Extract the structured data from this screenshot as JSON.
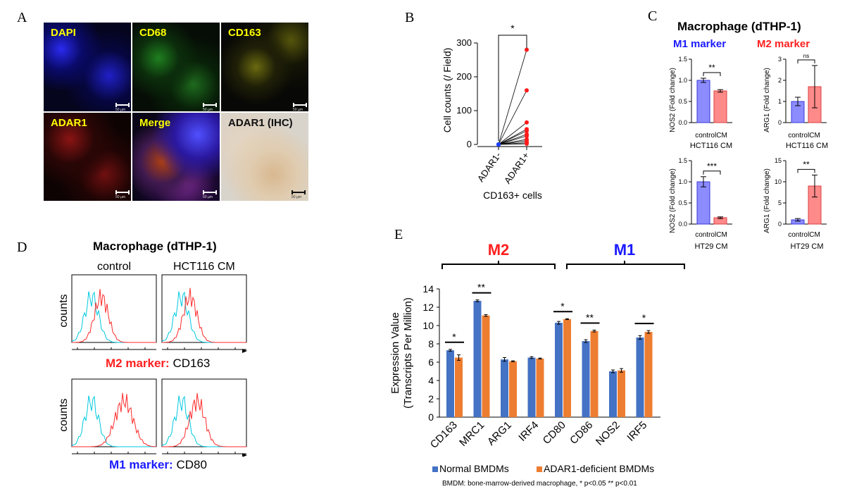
{
  "panel_letters": {
    "a": "A",
    "b": "B",
    "c": "C",
    "d": "D",
    "e": "E"
  },
  "panel_a": {
    "tiles": [
      {
        "label": "DAPI",
        "color": "#1a1ad9"
      },
      {
        "label": "CD68",
        "color": "#2bb02b"
      },
      {
        "label": "CD163",
        "color": "#b8b820"
      },
      {
        "label": "ADAR1",
        "color": "#c81e1e"
      },
      {
        "label": "Merge",
        "color": "#8a2f9a"
      },
      {
        "label": "ADAR1 (IHC)",
        "color": "#cdbda8"
      }
    ],
    "scale_text": "50 µm"
  },
  "panel_b": {
    "ylabel": "Cell counts (/ Field)",
    "xlabel": "CD163+ cells",
    "categories": [
      "ADAR1-",
      "ADAR1+"
    ],
    "yticks": [
      "0",
      "100",
      "200",
      "300"
    ],
    "sig": "*"
  },
  "panel_c": {
    "title": "Macrophage (dTHP-1)",
    "m1_label": "M1 marker",
    "m2_label": "M2 marker",
    "plots": [
      {
        "ylabel": "NOS2 (Fold change)",
        "xcats": "controlCM",
        "xlabel": "HCT116 CM",
        "sig": "**",
        "yticks": [
          "0.0",
          "0.5",
          "1.0",
          "1.5"
        ]
      },
      {
        "ylabel": "ARG1 (Fold change)",
        "xcats": "controlCM",
        "xlabel": "HCT116 CM",
        "sig": "ns",
        "yticks": [
          "0",
          "1",
          "2",
          "3"
        ]
      },
      {
        "ylabel": "NOS2 (Fold change)",
        "xcats": "controlCM",
        "xlabel": "HT29 CM",
        "sig": "***",
        "yticks": [
          "0.0",
          "0.5",
          "1.0",
          "1.5"
        ]
      },
      {
        "ylabel": "ARG1 (Fold change)",
        "xcats": "controlCM",
        "xlabel": "HT29 CM",
        "sig": "**",
        "yticks": [
          "0",
          "5",
          "10",
          "15"
        ]
      }
    ]
  },
  "panel_d": {
    "title": "Macrophage (dTHP-1)",
    "col1": "control",
    "col2": "HCT116 CM",
    "ylabel": "counts",
    "m2_marker": "M2 marker:",
    "m2_name": "CD163",
    "m1_marker": "M1 marker:",
    "m1_name": "CD80"
  },
  "panel_e": {
    "m2_label": "M2",
    "m1_label": "M1",
    "footnote": "BMDM: bone-marrow-derived macrophage, *  p<0.05  ** p<0.01"
  },
  "chart_data": [
    {
      "type": "scatter",
      "title": "",
      "xlabel": "CD163+ cells",
      "ylabel": "Cell counts (/ Field)",
      "categories": [
        "ADAR1-",
        "ADAR1+"
      ],
      "ylim": [
        0,
        300
      ],
      "series": [
        {
          "name": "ADAR1-",
          "values": [
            0,
            0,
            0,
            0,
            0,
            0,
            0,
            0,
            0,
            0,
            0
          ]
        },
        {
          "name": "ADAR1+",
          "values": [
            280,
            160,
            65,
            45,
            40,
            30,
            25,
            15,
            10,
            5,
            2
          ]
        }
      ]
    },
    {
      "type": "bar",
      "title": "",
      "xlabel": "HCT116 CM",
      "ylabel": "NOS2 (Fold change)",
      "categories": [
        "control",
        "CM"
      ],
      "values": [
        1.0,
        0.75
      ],
      "errors": [
        0.05,
        0.03
      ],
      "ylim": [
        0,
        1.5
      ]
    },
    {
      "type": "bar",
      "title": "",
      "xlabel": "HCT116 CM",
      "ylabel": "ARG1 (Fold change)",
      "categories": [
        "control",
        "CM"
      ],
      "values": [
        1.0,
        1.7
      ],
      "errors": [
        0.2,
        1.0
      ],
      "ylim": [
        0,
        3
      ]
    },
    {
      "type": "bar",
      "title": "",
      "xlabel": "HT29 CM",
      "ylabel": "NOS2 (Fold change)",
      "categories": [
        "control",
        "CM"
      ],
      "values": [
        1.0,
        0.15
      ],
      "errors": [
        0.12,
        0.02
      ],
      "ylim": [
        0,
        1.5
      ]
    },
    {
      "type": "bar",
      "title": "",
      "xlabel": "HT29 CM",
      "ylabel": "ARG1 (Fold change)",
      "categories": [
        "control",
        "CM"
      ],
      "values": [
        1.0,
        9.0
      ],
      "errors": [
        0.3,
        2.6
      ],
      "ylim": [
        0,
        15
      ]
    },
    {
      "type": "bar",
      "title": "",
      "xlabel": "",
      "ylabel": "Expression Value (Transcripts Per Million)",
      "categories": [
        "CD163",
        "MRC1",
        "ARG1",
        "IRF4",
        "CD80",
        "CD86",
        "NOS2",
        "IRF5"
      ],
      "ylim": [
        0,
        14
      ],
      "yticks": [
        "0",
        "2",
        "4",
        "6",
        "8",
        "10",
        "12",
        "14"
      ],
      "series": [
        {
          "name": "Normal BMDMs",
          "color": "#4472c4",
          "values": [
            7.3,
            12.7,
            6.3,
            6.5,
            10.3,
            8.3,
            5.0,
            8.7
          ],
          "errors": [
            0.1,
            0.1,
            0.2,
            0.1,
            0.15,
            0.15,
            0.15,
            0.2
          ]
        },
        {
          "name": "ADAR1-deficient BMDMs",
          "color": "#ed7d31",
          "values": [
            6.5,
            11.1,
            6.1,
            6.4,
            10.7,
            9.4,
            5.1,
            9.3
          ],
          "errors": [
            0.3,
            0.1,
            0.05,
            0.05,
            0.05,
            0.1,
            0.2,
            0.15
          ]
        }
      ],
      "significance": [
        {
          "category": "CD163",
          "label": "*"
        },
        {
          "category": "MRC1",
          "label": "**"
        },
        {
          "category": "CD80",
          "label": "*"
        },
        {
          "category": "CD86",
          "label": "**"
        },
        {
          "category": "IRF5",
          "label": "*"
        }
      ]
    }
  ]
}
